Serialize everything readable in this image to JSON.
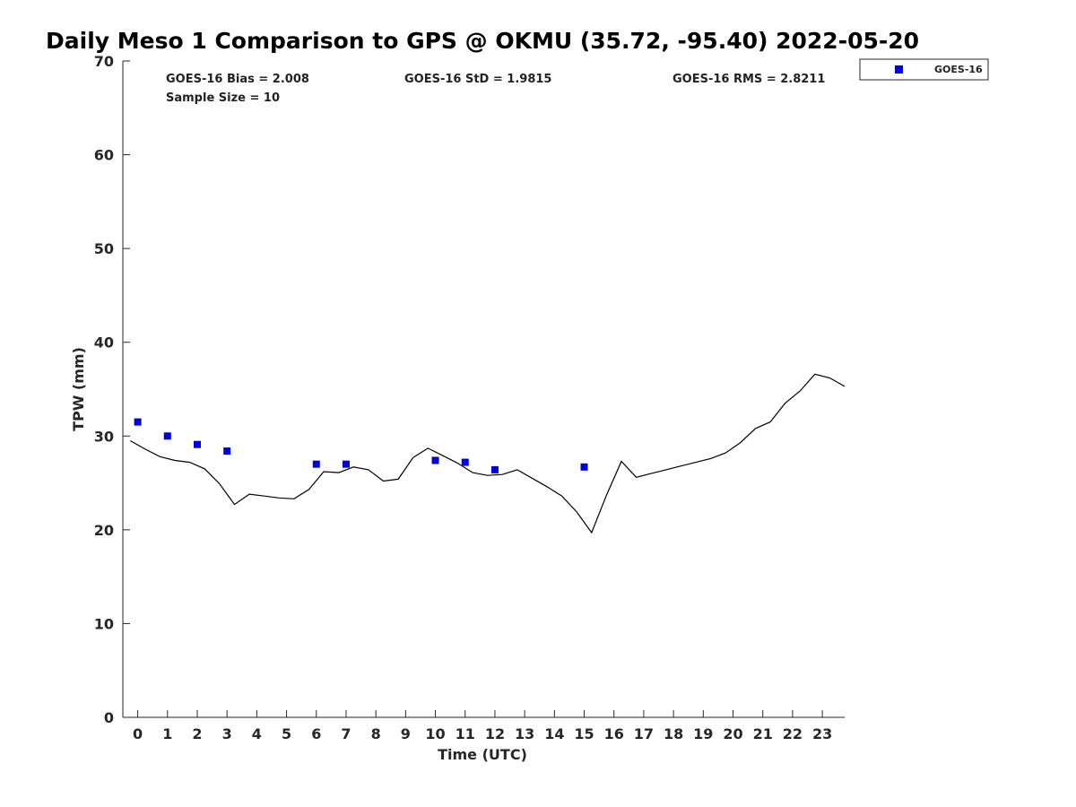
{
  "chart_data": {
    "type": "line",
    "title": "Daily Meso 1 Comparison to GPS @ OKMU (35.72, -95.40) 2022-05-20",
    "xlabel": "Time (UTC)",
    "ylabel": "TPW (mm)",
    "xlim": [
      -0.5,
      23.75
    ],
    "ylim": [
      0,
      70
    ],
    "x_ticks": [
      0,
      1,
      2,
      3,
      4,
      5,
      6,
      7,
      8,
      9,
      10,
      11,
      12,
      13,
      14,
      15,
      16,
      17,
      18,
      19,
      20,
      21,
      22,
      23
    ],
    "x_tick_labels": [
      "0",
      "1",
      "2",
      "3",
      "4",
      "5",
      "6",
      "7",
      "8",
      "9",
      "10",
      "11",
      "12",
      "13",
      "14",
      "15",
      "16",
      "17",
      "18",
      "19",
      "20",
      "21",
      "22",
      "23"
    ],
    "y_ticks": [
      0,
      10,
      20,
      30,
      40,
      50,
      60,
      70
    ],
    "y_tick_labels": [
      "0",
      "10",
      "20",
      "30",
      "40",
      "50",
      "60",
      "70"
    ],
    "grid": false,
    "legend_position": "top-right, outside plot",
    "series": [
      {
        "kind": "line",
        "color": "#000000",
        "x": [
          -0.25,
          0.25,
          0.75,
          1.25,
          1.75,
          2.25,
          2.75,
          3.25,
          3.75,
          4.25,
          4.75,
          5.25,
          5.75,
          6.25,
          6.75,
          7.25,
          7.75,
          8.25,
          8.75,
          9.25,
          9.75,
          10.25,
          10.75,
          11.25,
          11.75,
          12.25,
          12.75,
          13.25,
          13.75,
          14.25,
          14.75,
          15.25,
          15.75,
          16.25,
          16.75,
          17.25,
          17.75,
          18.25,
          18.75,
          19.25,
          19.75,
          20.25,
          20.75,
          21.25,
          21.75,
          22.25,
          22.75,
          23.25,
          23.75
        ],
        "values": [
          29.5,
          28.6,
          27.8,
          27.4,
          27.2,
          26.5,
          24.9,
          22.7,
          23.8,
          23.6,
          23.4,
          23.3,
          24.3,
          26.2,
          26.1,
          26.7,
          26.4,
          25.2,
          25.4,
          27.7,
          28.7,
          27.9,
          27.1,
          26.1,
          25.8,
          25.9,
          26.4,
          25.5,
          24.6,
          23.6,
          21.9,
          19.7,
          23.7,
          27.3,
          25.6,
          26.0,
          26.4,
          26.8,
          27.2,
          27.6,
          28.2,
          29.3,
          30.8,
          31.5,
          33.5,
          34.8,
          36.6,
          36.2,
          35.3
        ]
      },
      {
        "name": "GOES-16",
        "kind": "marker",
        "color": "#0000dd",
        "x": [
          0,
          1,
          2,
          3,
          6,
          7,
          10,
          11,
          12,
          15
        ],
        "values": [
          31.5,
          30.0,
          29.1,
          28.4,
          27.0,
          27.0,
          27.4,
          27.2,
          26.4,
          26.7
        ]
      }
    ],
    "annotations": {
      "bias": "GOES-16 Bias = 2.008",
      "std": "GOES-16 StD = 1.9815",
      "rms": "GOES-16 RMS = 2.8211",
      "sample_size": "Sample Size = 10"
    },
    "legend": [
      {
        "label": "GOES-16",
        "color": "#0000dd",
        "marker": "square"
      }
    ]
  }
}
